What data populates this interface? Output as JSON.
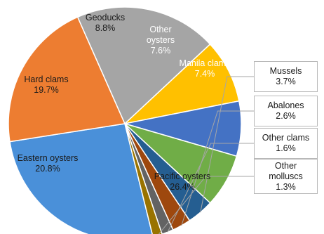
{
  "chart_data": {
    "type": "pie",
    "title": "",
    "slices": [
      {
        "name": "Pacific oysters",
        "value": 26.4,
        "label": "26.4%",
        "color": "#4a90d9"
      },
      {
        "name": "Eastern oysters",
        "value": 20.8,
        "label": "20.8%",
        "color": "#ed7d31"
      },
      {
        "name": "Hard clams",
        "value": 19.7,
        "label": "19.7%",
        "color": "#a5a5a5"
      },
      {
        "name": "Geoducks",
        "value": 8.8,
        "label": "8.8%",
        "color": "#ffc000"
      },
      {
        "name": "Other oysters",
        "value": 7.6,
        "label": "7.6%",
        "color": "#4472c4"
      },
      {
        "name": "Manila clams",
        "value": 7.4,
        "label": "7.4%",
        "color": "#70ad47"
      },
      {
        "name": "Mussels",
        "value": 3.7,
        "label": "3.7%",
        "color": "#255e91"
      },
      {
        "name": "Abalones",
        "value": 2.6,
        "label": "2.6%",
        "color": "#9e480e"
      },
      {
        "name": "Other clams",
        "value": 1.6,
        "label": "1.6%",
        "color": "#636363"
      },
      {
        "name": "Other molluscs",
        "value": 1.3,
        "label": "1.3%",
        "color": "#997300"
      }
    ]
  }
}
